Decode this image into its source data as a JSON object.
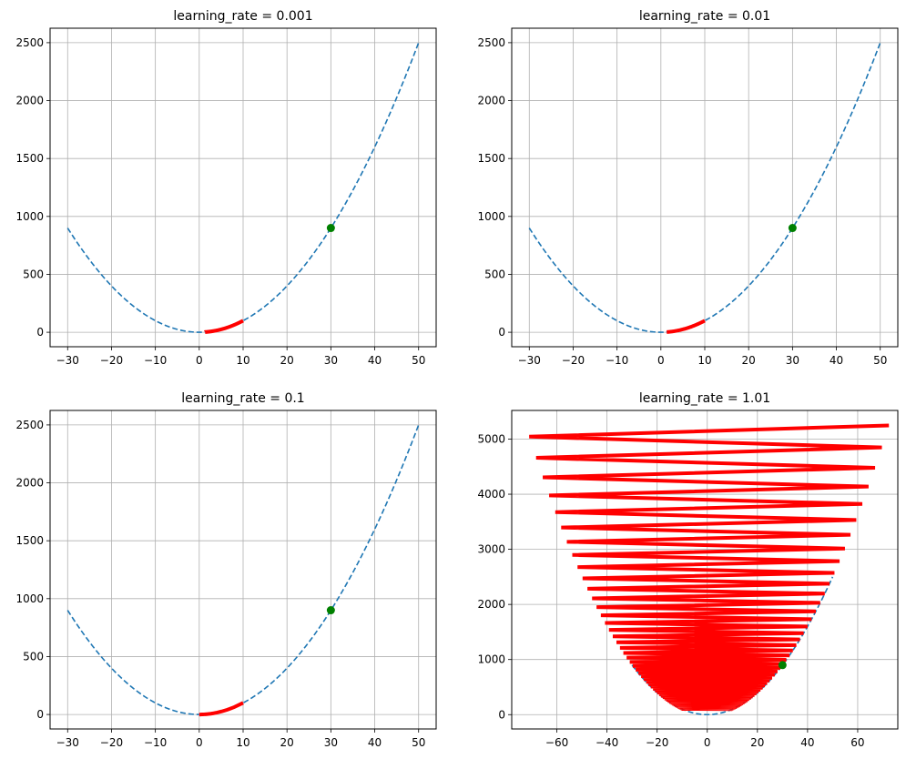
{
  "chart_data": [
    {
      "type": "line",
      "title": "learning_rate = 0.001",
      "learning_rate": 0.001,
      "xlim": [
        -34,
        54
      ],
      "ylim": [
        -125,
        2625
      ],
      "xticks": [
        -30,
        -20,
        -10,
        0,
        10,
        20,
        30,
        40,
        50
      ],
      "yticks": [
        0,
        500,
        1000,
        1500,
        2000,
        2500
      ],
      "grid": true,
      "function": "x^2",
      "curve_x_range": [
        -30,
        50
      ],
      "start_point": {
        "x": 30,
        "y": 900
      },
      "path_start_x": 10,
      "path_steps": 1000,
      "colors": {
        "curve": "#1f77b4",
        "path": "#ff0000",
        "point": "#008000"
      }
    },
    {
      "type": "line",
      "title": "learning_rate = 0.01",
      "learning_rate": 0.01,
      "xlim": [
        -34,
        54
      ],
      "ylim": [
        -125,
        2625
      ],
      "xticks": [
        -30,
        -20,
        -10,
        0,
        10,
        20,
        30,
        40,
        50
      ],
      "yticks": [
        0,
        500,
        1000,
        1500,
        2000,
        2500
      ],
      "grid": true,
      "function": "x^2",
      "curve_x_range": [
        -30,
        50
      ],
      "start_point": {
        "x": 30,
        "y": 900
      },
      "path_start_x": 10,
      "path_steps": 100,
      "colors": {
        "curve": "#1f77b4",
        "path": "#ff0000",
        "point": "#008000"
      }
    },
    {
      "type": "line",
      "title": "learning_rate = 0.1",
      "learning_rate": 0.1,
      "xlim": [
        -34,
        54
      ],
      "ylim": [
        -125,
        2625
      ],
      "xticks": [
        -30,
        -20,
        -10,
        0,
        10,
        20,
        30,
        40,
        50
      ],
      "yticks": [
        0,
        500,
        1000,
        1500,
        2000,
        2500
      ],
      "grid": true,
      "function": "x^2",
      "curve_x_range": [
        -30,
        50
      ],
      "start_point": {
        "x": 30,
        "y": 900
      },
      "path_start_x": 10,
      "path_steps": 100,
      "colors": {
        "curve": "#1f77b4",
        "path": "#ff0000",
        "point": "#008000"
      }
    },
    {
      "type": "line",
      "title": "learning_rate = 1.01",
      "learning_rate": 1.01,
      "xlim": [
        -78,
        76
      ],
      "ylim": [
        -260,
        5520
      ],
      "xticks": [
        -60,
        -40,
        -20,
        0,
        20,
        40,
        60
      ],
      "yticks": [
        0,
        1000,
        2000,
        3000,
        4000,
        5000
      ],
      "grid": true,
      "function": "x^2",
      "curve_x_range": [
        -30,
        50
      ],
      "start_point": {
        "x": 30,
        "y": 900
      },
      "path_start_x": 10,
      "path_steps": 100,
      "colors": {
        "curve": "#1f77b4",
        "path": "#ff0000",
        "point": "#008000"
      }
    }
  ]
}
